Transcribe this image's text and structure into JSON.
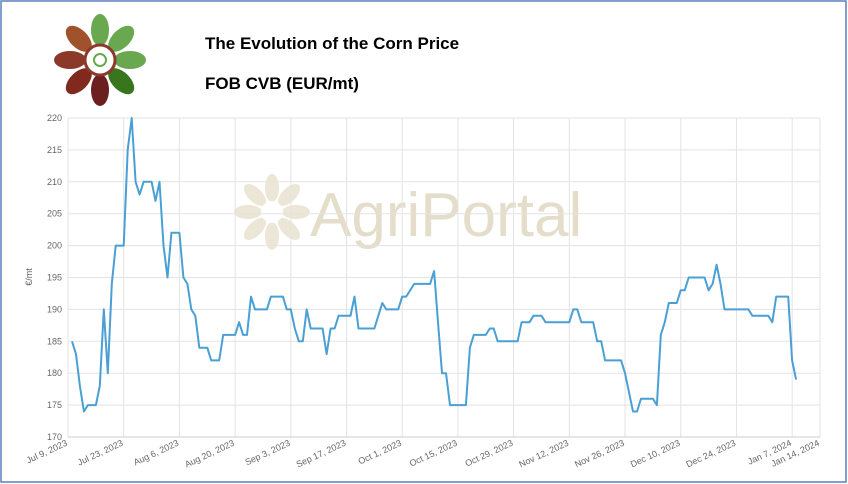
{
  "chart_data": {
    "type": "line",
    "title": "The Evolution of the Corn Price",
    "subtitle": "FOB CVB (EUR/mt)",
    "watermark": "AgriPortal",
    "y_label": "€/mt",
    "x": [
      "2023-07-10",
      "2023-07-11",
      "2023-07-12",
      "2023-07-13",
      "2023-07-14",
      "2023-07-16",
      "2023-07-17",
      "2023-07-18",
      "2023-07-19",
      "2023-07-20",
      "2023-07-21",
      "2023-07-23",
      "2023-07-24",
      "2023-07-25",
      "2023-07-26",
      "2023-07-27",
      "2023-07-28",
      "2023-07-30",
      "2023-07-31",
      "2023-08-01",
      "2023-08-02",
      "2023-08-03",
      "2023-08-04",
      "2023-08-06",
      "2023-08-07",
      "2023-08-08",
      "2023-08-09",
      "2023-08-10",
      "2023-08-11",
      "2023-08-13",
      "2023-08-14",
      "2023-08-16",
      "2023-08-17",
      "2023-08-20",
      "2023-08-21",
      "2023-08-22",
      "2023-08-23",
      "2023-08-24",
      "2023-08-25",
      "2023-08-28",
      "2023-08-29",
      "2023-09-01",
      "2023-09-02",
      "2023-09-03",
      "2023-09-04",
      "2023-09-05",
      "2023-09-06",
      "2023-09-07",
      "2023-09-08",
      "2023-09-11",
      "2023-09-12",
      "2023-09-13",
      "2023-09-14",
      "2023-09-15",
      "2023-09-18",
      "2023-09-19",
      "2023-09-20",
      "2023-09-24",
      "2023-09-25",
      "2023-09-26",
      "2023-09-27",
      "2023-09-30",
      "2023-10-01",
      "2023-10-02",
      "2023-10-04",
      "2023-10-08",
      "2023-10-09",
      "2023-10-10",
      "2023-10-11",
      "2023-10-12",
      "2023-10-13",
      "2023-10-17",
      "2023-10-18",
      "2023-10-19",
      "2023-10-22",
      "2023-10-23",
      "2023-10-24",
      "2023-10-25",
      "2023-10-30",
      "2023-10-31",
      "2023-11-02",
      "2023-11-03",
      "2023-11-05",
      "2023-11-06",
      "2023-11-12",
      "2023-11-13",
      "2023-11-14",
      "2023-11-15",
      "2023-11-18",
      "2023-11-19",
      "2023-11-20",
      "2023-11-21",
      "2023-11-25",
      "2023-11-26",
      "2023-11-27",
      "2023-11-28",
      "2023-11-29",
      "2023-11-30",
      "2023-12-03",
      "2023-12-04",
      "2023-12-05",
      "2023-12-06",
      "2023-12-07",
      "2023-12-09",
      "2023-12-10",
      "2023-12-11",
      "2023-12-12",
      "2023-12-16",
      "2023-12-17",
      "2023-12-18",
      "2023-12-19",
      "2023-12-20",
      "2023-12-21",
      "2023-12-27",
      "2023-12-28",
      "2024-01-01",
      "2024-01-02",
      "2024-01-03",
      "2024-01-06",
      "2024-01-07",
      "2024-01-08"
    ],
    "series": [
      {
        "name": "FOB CVB",
        "color": "#4a9fd4",
        "values": [
          185,
          183,
          178,
          174,
          175,
          175,
          178,
          190,
          180,
          194,
          200,
          200,
          215,
          220,
          210,
          208,
          210,
          210,
          207,
          210,
          200,
          195,
          202,
          202,
          195,
          194,
          190,
          189,
          184,
          184,
          182,
          182,
          186,
          186,
          188,
          186,
          186,
          192,
          190,
          190,
          192,
          192,
          190,
          190,
          187,
          185,
          185,
          190,
          187,
          187,
          183,
          187,
          187,
          189,
          189,
          192,
          187,
          187,
          189,
          191,
          190,
          190,
          192,
          192,
          194,
          194,
          196,
          188,
          180,
          180,
          175,
          175,
          184,
          186,
          186,
          187,
          187,
          185,
          185,
          188,
          188,
          189,
          189,
          188,
          188,
          190,
          190,
          188,
          188,
          185,
          185,
          182,
          182,
          180,
          177,
          174,
          174,
          176,
          176,
          175,
          186,
          188,
          191,
          191,
          193,
          193,
          195,
          195,
          193,
          194,
          197,
          194,
          190,
          190,
          189,
          189,
          188,
          192,
          192,
          182,
          179
        ]
      }
    ],
    "xlim": [
      "2023-07-09",
      "2024-01-14"
    ],
    "xticks": [
      {
        "value": "2023-07-09",
        "label": "Jul 9, 2023"
      },
      {
        "value": "2023-07-23",
        "label": "Jul 23, 2023"
      },
      {
        "value": "2023-08-06",
        "label": "Aug 6, 2023"
      },
      {
        "value": "2023-08-20",
        "label": "Aug 20, 2023"
      },
      {
        "value": "2023-09-03",
        "label": "Sep 3, 2023"
      },
      {
        "value": "2023-09-17",
        "label": "Sep 17, 2023"
      },
      {
        "value": "2023-10-01",
        "label": "Oct 1, 2023"
      },
      {
        "value": "2023-10-15",
        "label": "Oct 15, 2023"
      },
      {
        "value": "2023-10-29",
        "label": "Oct 29, 2023"
      },
      {
        "value": "2023-11-12",
        "label": "Nov 12, 2023"
      },
      {
        "value": "2023-11-26",
        "label": "Nov 26, 2023"
      },
      {
        "value": "2023-12-10",
        "label": "Dec 10, 2023"
      },
      {
        "value": "2023-12-24",
        "label": "Dec 24, 2023"
      },
      {
        "value": "2024-01-07",
        "label": "Jan 7, 2024"
      },
      {
        "value": "2024-01-14",
        "label": "Jan 14, 2024"
      }
    ],
    "ylim": [
      170,
      220
    ],
    "yticks": [
      170,
      175,
      180,
      185,
      190,
      195,
      200,
      205,
      210,
      215,
      220
    ],
    "grid": true
  }
}
